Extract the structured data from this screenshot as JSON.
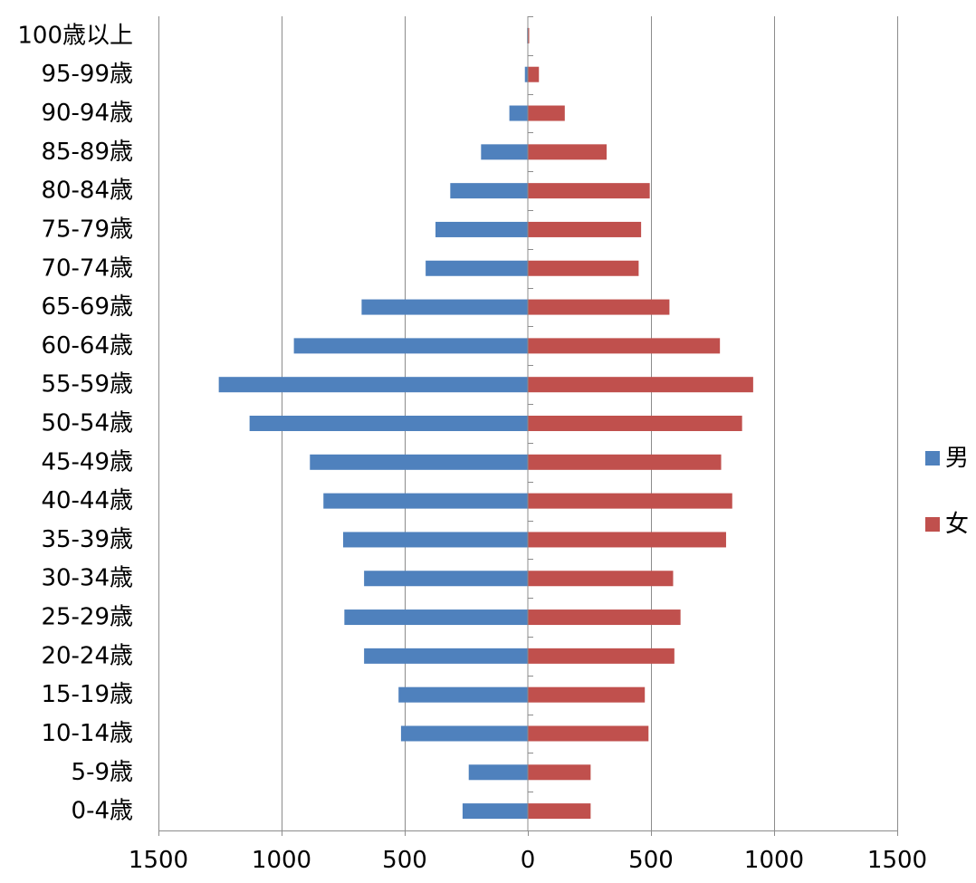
{
  "chart_data": {
    "type": "bar",
    "orientation": "horizontal",
    "layout": "population-pyramid",
    "categories": [
      "100歳以上",
      "95-99歳",
      "90-94歳",
      "85-89歳",
      "80-84歳",
      "75-79歳",
      "70-74歳",
      "65-69歳",
      "60-64歳",
      "55-59歳",
      "50-54歳",
      "45-49歳",
      "40-44歳",
      "35-39歳",
      "30-34歳",
      "25-29歳",
      "20-24歳",
      "15-19歳",
      "10-14歳",
      "5-9歳",
      "0-4歳"
    ],
    "series": [
      {
        "name": "男",
        "color": "#4F81BD",
        "direction": "left",
        "values": [
          3,
          12,
          75,
          190,
          315,
          375,
          415,
          675,
          950,
          1255,
          1130,
          885,
          830,
          750,
          665,
          745,
          665,
          525,
          515,
          240,
          265
        ]
      },
      {
        "name": "女",
        "color": "#C0504D",
        "direction": "right",
        "values": [
          3,
          45,
          150,
          320,
          495,
          460,
          450,
          575,
          780,
          915,
          870,
          785,
          830,
          805,
          590,
          620,
          595,
          475,
          490,
          255,
          255
        ]
      }
    ],
    "xlim": [
      -1500,
      1500
    ],
    "x_ticks": [
      -1500,
      -1000,
      -500,
      0,
      500,
      1000,
      1500
    ],
    "x_tick_labels": [
      "1500",
      "1000",
      "500",
      "0",
      "500",
      "1000",
      "1500"
    ],
    "grid": "vertical",
    "legend": "right",
    "title": "",
    "xlabel": "",
    "ylabel": ""
  }
}
